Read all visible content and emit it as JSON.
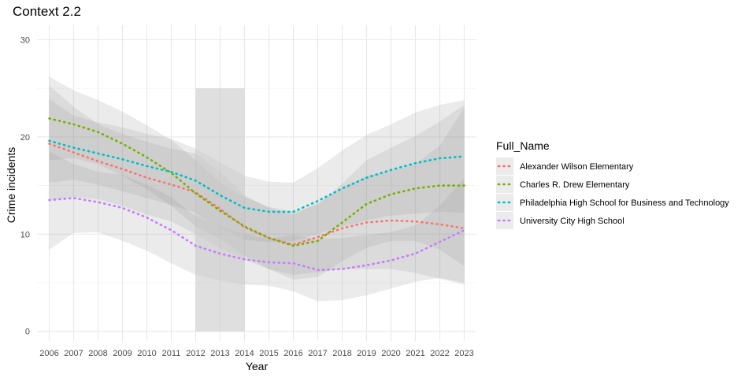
{
  "chart_data": {
    "type": "line",
    "title": "Context 2.2",
    "xlabel": "Year",
    "ylabel": "Crime incidents",
    "x": [
      2006,
      2007,
      2008,
      2009,
      2010,
      2011,
      2012,
      2013,
      2014,
      2015,
      2016,
      2017,
      2018,
      2019,
      2020,
      2021,
      2022,
      2023
    ],
    "x_ticks": [
      "2006",
      "2007",
      "2008",
      "2009",
      "2010",
      "2011",
      "2012",
      "2013",
      "2014",
      "2015",
      "2016",
      "2017",
      "2018",
      "2019",
      "2020",
      "2021",
      "2022",
      "2023"
    ],
    "y_ticks": [
      "0",
      "10",
      "20",
      "30"
    ],
    "xlim": [
      2005.5,
      2023.5
    ],
    "ylim": [
      -1.0,
      31.5
    ],
    "grid": true,
    "legend_title": "Full_Name",
    "legend_position": "right",
    "highlight_band": {
      "x_from": 2012,
      "x_to": 2014,
      "y_from": 0,
      "y_to": 25,
      "color": "#c9c9c9"
    },
    "series": [
      {
        "name": "Alexander Wilson Elementary",
        "color": "#F8766D",
        "values": [
          19.3,
          18.4,
          17.5,
          16.7,
          15.8,
          15.1,
          14.3,
          12.6,
          10.7,
          9.6,
          8.9,
          9.7,
          10.6,
          11.2,
          11.4,
          11.3,
          11.0,
          10.6
        ],
        "ci_lower": [
          13.5,
          13.8,
          13.6,
          12.9,
          12.0,
          11.3,
          10.0,
          8.6,
          7.4,
          6.4,
          5.8,
          6.1,
          6.4,
          6.4,
          6.4,
          6.0,
          5.4,
          4.8
        ],
        "ci_upper": [
          25.3,
          23.1,
          21.3,
          20.3,
          19.5,
          18.8,
          18.3,
          16.4,
          14.0,
          12.7,
          12.0,
          13.2,
          14.7,
          16.0,
          16.5,
          17.2,
          19.1,
          23.0
        ]
      },
      {
        "name": "Charles R. Drew Elementary",
        "color": "#7CAE00",
        "values": [
          21.9,
          21.3,
          20.5,
          19.3,
          17.9,
          16.3,
          14.2,
          12.4,
          10.8,
          9.6,
          8.8,
          9.3,
          11.2,
          13.1,
          14.1,
          14.7,
          15.0,
          15.0
        ],
        "ci_lower": [
          17.6,
          17.8,
          17.2,
          16.0,
          14.6,
          12.9,
          10.8,
          9.5,
          7.8,
          6.4,
          5.3,
          5.6,
          7.2,
          8.6,
          9.3,
          9.3,
          8.4,
          6.7
        ],
        "ci_upper": [
          26.2,
          24.8,
          23.8,
          22.6,
          21.2,
          19.7,
          17.6,
          15.3,
          13.8,
          12.8,
          12.3,
          13.0,
          15.2,
          17.6,
          18.9,
          20.1,
          21.6,
          23.3
        ]
      },
      {
        "name": "Philadelphia High School for Business and Technology",
        "color": "#00BFC4",
        "values": [
          19.6,
          18.9,
          18.3,
          17.7,
          17.0,
          16.4,
          15.5,
          14.0,
          12.7,
          12.3,
          12.3,
          13.4,
          14.7,
          15.8,
          16.6,
          17.3,
          17.8,
          18.0
        ],
        "ci_lower": [
          15.3,
          15.6,
          15.1,
          14.4,
          13.7,
          13.0,
          12.2,
          10.6,
          9.4,
          9.2,
          9.3,
          10.0,
          10.8,
          11.4,
          11.9,
          12.1,
          12.3,
          12.2
        ],
        "ci_upper": [
          23.9,
          22.2,
          21.5,
          21.0,
          20.3,
          19.8,
          18.8,
          17.4,
          16.0,
          15.4,
          15.3,
          16.8,
          18.6,
          20.2,
          21.3,
          22.5,
          23.3,
          23.8
        ]
      },
      {
        "name": "University City High School",
        "color": "#C77CFF",
        "values": [
          13.5,
          13.7,
          13.3,
          12.7,
          11.7,
          10.4,
          8.8,
          8.0,
          7.4,
          7.1,
          7.0,
          6.3,
          6.4,
          6.8,
          7.3,
          8.0,
          9.2,
          10.4
        ],
        "ci_lower": [
          8.4,
          10.1,
          10.2,
          9.3,
          8.3,
          7.0,
          5.8,
          5.2,
          4.8,
          4.7,
          4.1,
          3.1,
          3.2,
          3.7,
          4.4,
          5.1,
          5.5,
          5.0
        ],
        "ci_upper": [
          18.5,
          17.2,
          16.4,
          16.1,
          15.1,
          13.8,
          11.8,
          10.8,
          10.0,
          9.5,
          9.9,
          9.5,
          9.6,
          9.9,
          10.2,
          10.9,
          12.9,
          15.8
        ]
      }
    ]
  }
}
